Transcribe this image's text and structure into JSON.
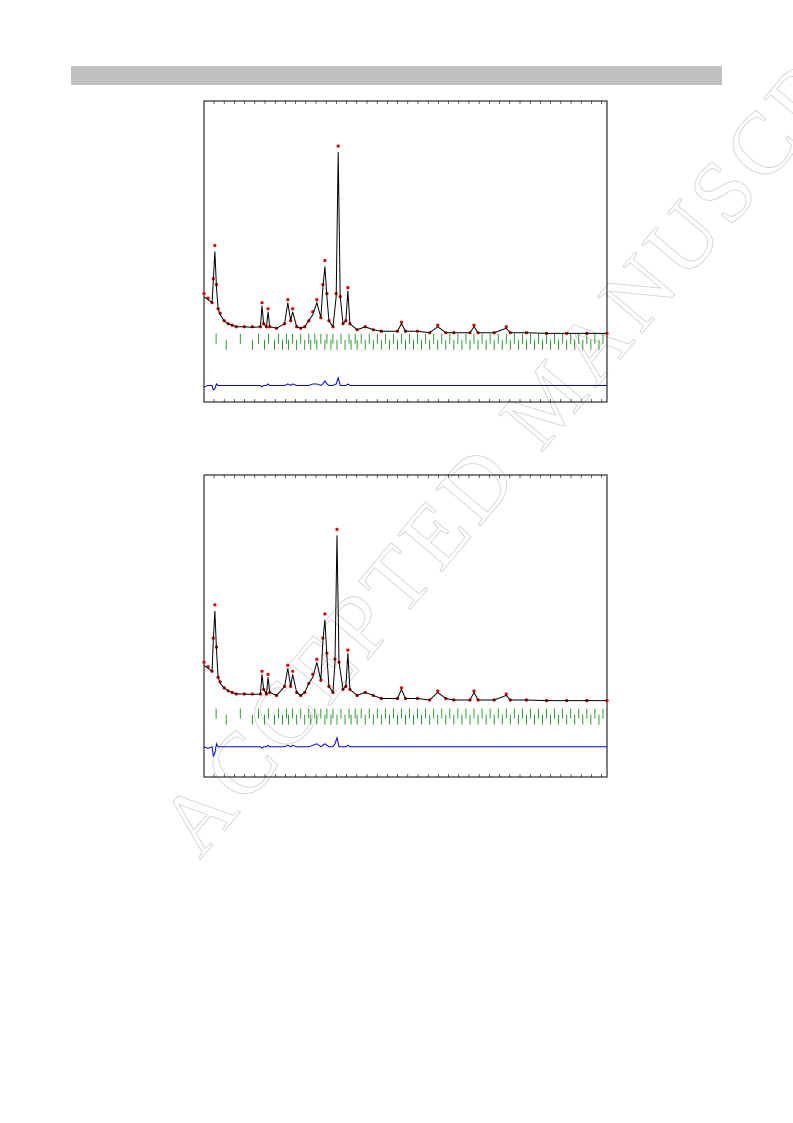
{
  "watermark": "ACCEPTED MANUSCRIPT",
  "chart_data": [
    {
      "type": "rietveld",
      "xlim": [
        0,
        100
      ],
      "ylim": [
        0,
        100
      ],
      "x": [
        0,
        1,
        2,
        2.3,
        2.7,
        3.1,
        3.5,
        4,
        5,
        6,
        7,
        8,
        10,
        12,
        14,
        14.4,
        14.8,
        15.5,
        15.9,
        16.3,
        18,
        20,
        20.8,
        21.5,
        22,
        23,
        24,
        25,
        26,
        27,
        28,
        29,
        29.5,
        30,
        30.5,
        31,
        32,
        32.8,
        33.3,
        33.8,
        34.5,
        35.2,
        35.7,
        36.2,
        38,
        40,
        42,
        44,
        48,
        49,
        50,
        53,
        56,
        58,
        60,
        62,
        66,
        67,
        68,
        72,
        75,
        76,
        80,
        85,
        90,
        95,
        100
      ],
      "series": [
        {
          "color": "#e00000",
          "style": "points",
          "values": [
            36,
            34.5,
            33,
            41,
            52,
            39,
            31,
            29.5,
            27,
            26,
            25.5,
            25,
            25,
            25,
            25,
            33,
            26,
            25,
            31,
            25,
            24.5,
            26,
            34,
            27,
            31,
            25,
            24.5,
            25,
            27,
            30,
            34,
            28,
            39,
            47,
            36,
            27,
            25,
            36,
            85,
            35,
            26,
            27,
            38,
            26,
            24,
            25,
            24,
            23.5,
            23.5,
            26.5,
            23.5,
            23.5,
            23,
            25.5,
            23,
            23,
            23,
            25.5,
            23,
            23,
            25,
            23,
            23,
            22.8,
            22.8,
            22.8,
            22.8
          ]
        },
        {
          "color": "#000000",
          "style": "line",
          "values": [
            35,
            34,
            33,
            40,
            50,
            38,
            31,
            29,
            27,
            26,
            25.5,
            25,
            25,
            24.8,
            25,
            32,
            26,
            25,
            30,
            25,
            24.5,
            26,
            33,
            27,
            30,
            25,
            24.5,
            25,
            27,
            29,
            33,
            28,
            38,
            45,
            35,
            27,
            25,
            35,
            83,
            35,
            26,
            27,
            37,
            26,
            24,
            25,
            24,
            23.5,
            23.5,
            26,
            23.5,
            23.5,
            23,
            25,
            23,
            23,
            23,
            25,
            23,
            23,
            24.5,
            23,
            23,
            22.8,
            22.8,
            22.8,
            22.8
          ]
        },
        {
          "color": "#0000dd",
          "style": "line",
          "values": [
            5,
            5.5,
            5.5,
            4,
            4.5,
            6,
            5.5,
            5.5,
            5.5,
            5.5,
            5.5,
            5.5,
            5.5,
            5.5,
            5.5,
            5,
            5.5,
            5.5,
            6,
            5.5,
            5.5,
            5.5,
            6,
            5.5,
            6,
            5.5,
            5.5,
            5.5,
            5.5,
            6,
            6,
            5.5,
            6,
            7,
            6,
            5.5,
            5.5,
            6,
            8,
            5.5,
            5.5,
            5.5,
            6,
            5.5,
            5.5,
            5.5,
            5.5,
            5.5,
            5.5,
            5.5,
            5.5,
            5.5,
            5.5,
            5.5,
            5.5,
            5.5,
            5.5,
            5.5,
            5.5,
            5.5,
            5.5,
            5.5,
            5.5,
            5.5,
            5.5,
            5.5,
            5.5
          ]
        }
      ],
      "reflections": {
        "color": "#008000",
        "x": [
          3,
          5.5,
          9,
          12,
          13.5,
          15,
          16,
          17.5,
          18.5,
          19.5,
          20.5,
          21,
          22,
          23,
          24,
          25,
          26,
          26.5,
          27.5,
          28,
          29,
          30,
          30.5,
          31.5,
          32,
          33,
          34,
          35,
          36,
          36.5,
          37.5,
          38,
          39,
          40,
          41,
          42,
          43,
          44,
          45,
          46,
          47,
          48,
          49,
          50,
          51,
          52,
          53,
          54,
          55,
          56,
          57,
          58,
          59,
          60,
          61,
          62,
          63,
          64,
          65,
          66,
          67,
          68,
          69,
          70,
          71,
          72,
          73,
          74,
          75,
          76,
          77,
          78,
          79,
          80,
          81,
          82,
          83,
          84,
          85,
          86,
          87,
          88,
          89,
          90,
          91,
          92,
          93,
          94,
          95,
          96,
          97,
          98,
          99
        ]
      }
    },
    {
      "type": "rietveld",
      "xlim": [
        0,
        100
      ],
      "ylim": [
        0,
        100
      ],
      "x": [
        0,
        1,
        2,
        2.3,
        2.7,
        3.1,
        3.5,
        4,
        5,
        6,
        7,
        8,
        10,
        12,
        14,
        14.4,
        14.8,
        15.5,
        15.9,
        16.3,
        18,
        20,
        20.8,
        21.5,
        22,
        23,
        24,
        25,
        26,
        27,
        28,
        29,
        29.5,
        30,
        30.5,
        31,
        32,
        32.5,
        33,
        33.5,
        34.5,
        35.2,
        35.7,
        36.2,
        38,
        40,
        42,
        44,
        48,
        49,
        50,
        53,
        56,
        58,
        60,
        62,
        66,
        67,
        68,
        72,
        75,
        76,
        80,
        85,
        90,
        95,
        100
      ],
      "series": [
        {
          "color": "#e00000",
          "style": "points",
          "values": [
            38,
            36.5,
            35,
            46,
            57,
            43,
            33,
            31.5,
            29.5,
            28.5,
            28,
            27.5,
            27.5,
            27.5,
            27.5,
            35,
            29,
            27.5,
            34,
            28,
            27,
            30,
            37,
            30,
            35,
            28,
            27,
            28,
            31,
            34,
            39,
            32,
            46,
            54,
            41,
            30,
            28,
            39,
            82,
            38,
            29,
            30,
            42,
            29,
            27,
            28,
            27,
            26,
            26,
            29.5,
            26,
            26,
            25.5,
            28.5,
            26,
            25.5,
            25.5,
            28.5,
            25.5,
            25.5,
            27.5,
            25.5,
            25.5,
            25.3,
            25.3,
            25.3,
            25.3
          ]
        },
        {
          "color": "#000000",
          "style": "line",
          "values": [
            37,
            36,
            35,
            45,
            55,
            42,
            33,
            31,
            29.5,
            28.5,
            28,
            27.5,
            27.5,
            27.3,
            27.5,
            34,
            29,
            27.5,
            33,
            28,
            27,
            30,
            36,
            30,
            34,
            28,
            27,
            28,
            31,
            33,
            38,
            32,
            45,
            52,
            40,
            30,
            28,
            38,
            80,
            38,
            29,
            30,
            41,
            29,
            27,
            28,
            27,
            26,
            26,
            29,
            26,
            26,
            25.5,
            28,
            26,
            25.5,
            25.5,
            28,
            25.5,
            25.5,
            27,
            25.5,
            25.5,
            25.3,
            25.3,
            25.3,
            25.3
          ]
        },
        {
          "color": "#0000dd",
          "style": "line",
          "values": [
            10,
            9.5,
            10,
            7,
            8,
            11,
            10,
            10,
            10,
            10,
            10,
            10,
            10,
            10,
            10,
            9.5,
            10,
            10,
            10.5,
            10,
            10,
            10,
            10.5,
            10,
            10.5,
            10,
            10,
            10,
            10,
            10.5,
            11,
            10,
            10.5,
            11,
            10.5,
            10,
            10,
            11,
            13,
            10,
            10,
            10,
            10.5,
            10,
            10,
            10,
            10,
            10,
            10,
            10,
            10,
            10,
            10,
            10,
            10,
            10,
            10,
            10,
            10,
            10,
            10,
            10,
            10,
            10,
            10,
            10,
            10
          ]
        }
      ],
      "reflections": {
        "color": "#008000",
        "x": [
          3,
          5.5,
          9,
          12,
          13.5,
          15,
          16,
          17.5,
          18.5,
          19.5,
          20.5,
          21,
          22,
          23,
          24,
          25,
          26,
          26.5,
          27.5,
          28,
          29,
          30,
          30.5,
          31.5,
          32,
          33,
          34,
          35,
          36,
          36.5,
          37.5,
          38,
          39,
          40,
          41,
          42,
          43,
          44,
          45,
          46,
          47,
          48,
          49,
          50,
          51,
          52,
          53,
          54,
          55,
          56,
          57,
          58,
          59,
          60,
          61,
          62,
          63,
          64,
          65,
          66,
          67,
          68,
          69,
          70,
          71,
          72,
          73,
          74,
          75,
          76,
          77,
          78,
          79,
          80,
          81,
          82,
          83,
          84,
          85,
          86,
          87,
          88,
          89,
          90,
          91,
          92,
          93,
          94,
          95,
          96,
          97,
          98,
          99
        ]
      }
    }
  ]
}
